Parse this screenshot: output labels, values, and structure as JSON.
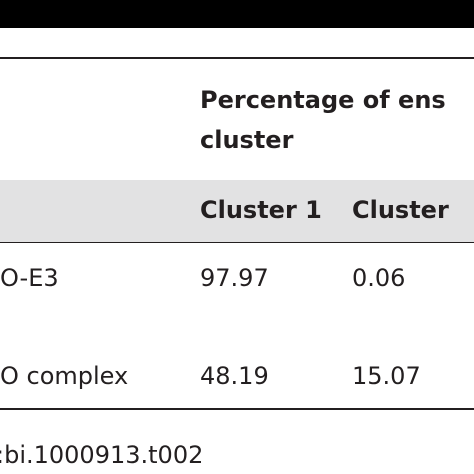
{
  "table": {
    "header": {
      "title_lines": [
        "Percentage of ens",
        "cluster"
      ]
    },
    "columns": [
      "Cluster 1",
      "Cluster"
    ],
    "rows": [
      [
        "O-E3",
        "97.97",
        "0.06"
      ],
      [
        "O complex",
        "48.19",
        "15.07"
      ]
    ]
  },
  "footer": ":bi.1000913.t002"
}
